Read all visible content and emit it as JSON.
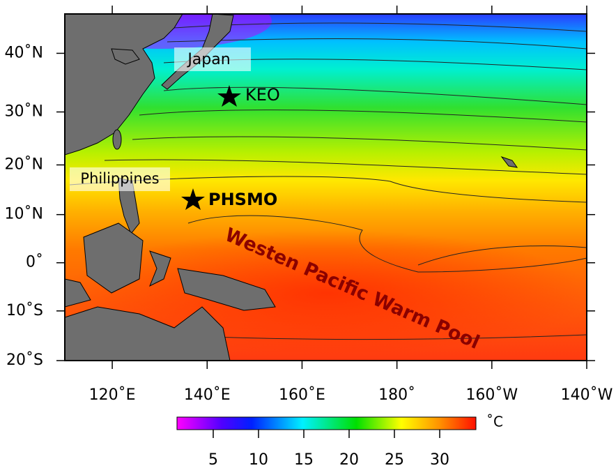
{
  "map": {
    "lon_range": [
      110,
      220
    ],
    "lat_range": [
      -20,
      46
    ],
    "lon_ticks": [
      {
        "value": 120,
        "label": "120˚E"
      },
      {
        "value": 140,
        "label": "140˚E"
      },
      {
        "value": 160,
        "label": "160˚E"
      },
      {
        "value": 180,
        "label": "180˚"
      },
      {
        "value": 200,
        "label": "160˚W"
      },
      {
        "value": 220,
        "label": "140˚W"
      }
    ],
    "lat_ticks": [
      {
        "value": 40,
        "label": "40˚N"
      },
      {
        "value": 30,
        "label": "30˚N"
      },
      {
        "value": 20,
        "label": "20˚N"
      },
      {
        "value": 10,
        "label": "10˚N"
      },
      {
        "value": 0,
        "label": "0˚"
      },
      {
        "value": -10,
        "label": "10˚S"
      },
      {
        "value": -20,
        "label": "20˚S"
      }
    ],
    "labels": {
      "japan": "Japan",
      "keo": "KEO",
      "philippines": "Philippines",
      "phsmo": "PHSMO",
      "warm_pool": "Westen Pacific Warm Pool"
    }
  },
  "colorbar": {
    "range": [
      1,
      34
    ],
    "ticks": [
      5,
      10,
      15,
      20,
      25,
      30
    ],
    "unit": "˚C"
  }
}
